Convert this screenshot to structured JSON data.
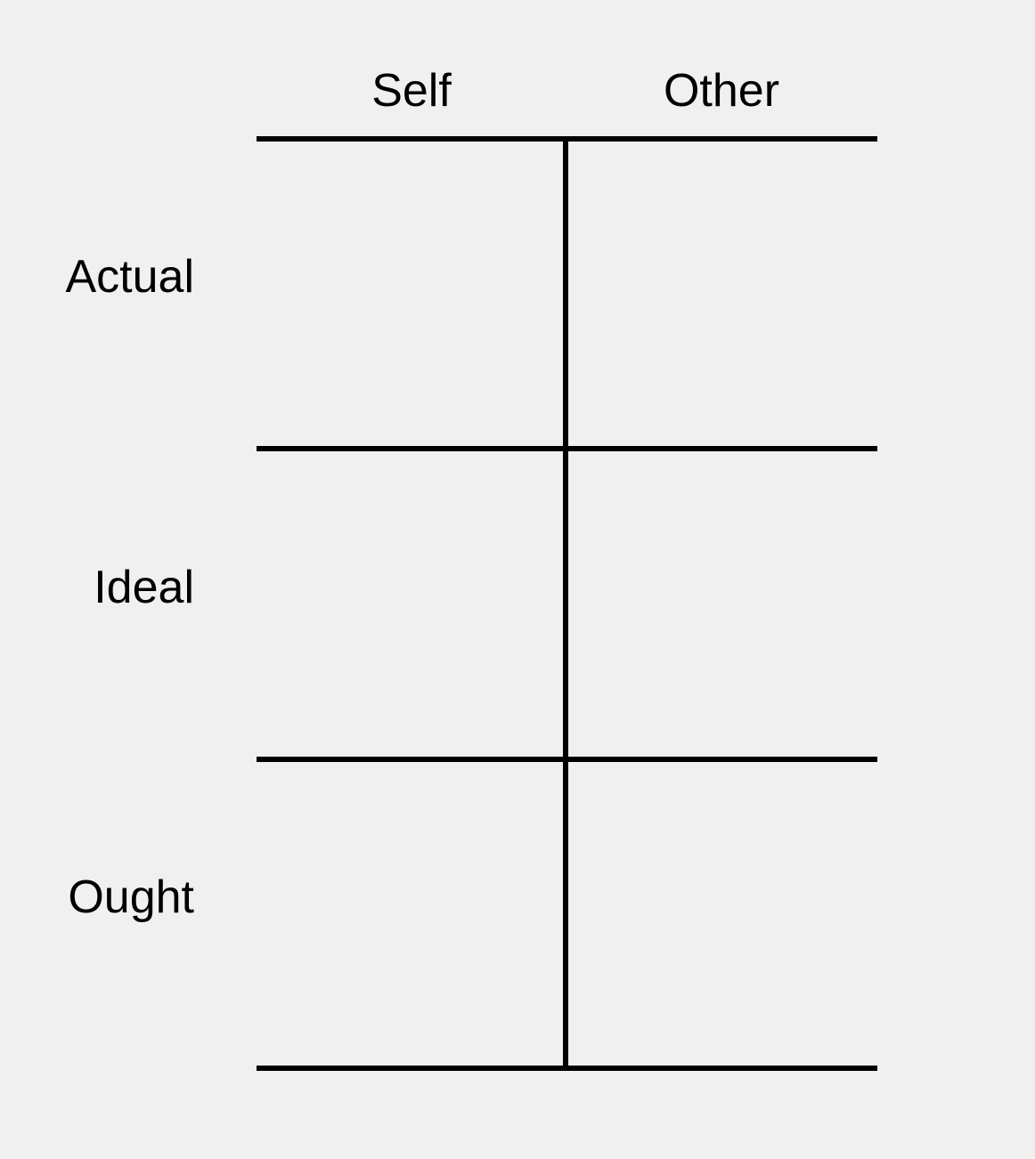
{
  "columns": {
    "self": "Self",
    "other": "Other"
  },
  "rows": {
    "actual": "Actual",
    "ideal": "Ideal",
    "ought": "Ought"
  },
  "colors": {
    "background": "#f0f0f0",
    "lines": "#000000",
    "text": "#000000"
  }
}
